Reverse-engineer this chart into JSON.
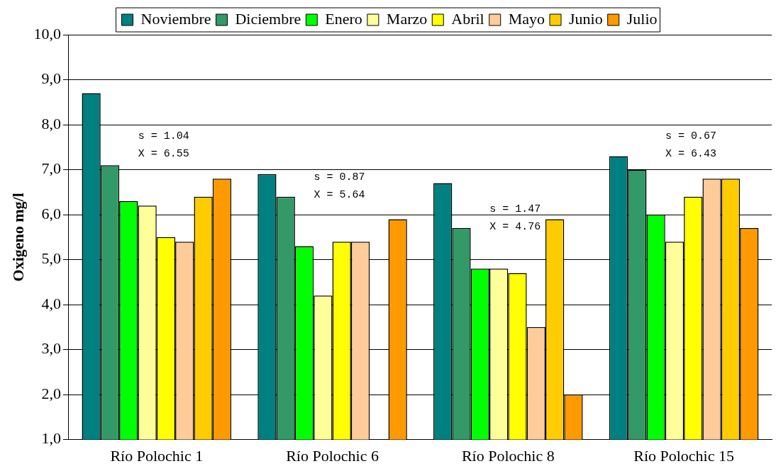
{
  "chart_data": {
    "type": "bar",
    "ylabel": "Oxigeno mg/l",
    "categories": [
      "Río Polochic 1",
      "Río Polochic 6",
      "Río Polochic 8",
      "Río Polochic 15"
    ],
    "series": [
      {
        "name": "Noviembre",
        "color": "#008080",
        "values": [
          8.7,
          6.9,
          6.7,
          7.3
        ]
      },
      {
        "name": "Diciembre",
        "color": "#339966",
        "values": [
          7.1,
          6.4,
          5.7,
          7.0
        ]
      },
      {
        "name": "Enero",
        "color": "#00ff00",
        "values": [
          6.3,
          5.3,
          4.8,
          6.0
        ]
      },
      {
        "name": "Marzo",
        "color": "#ffff99",
        "values": [
          6.2,
          4.2,
          4.8,
          5.4
        ]
      },
      {
        "name": "Abril",
        "color": "#ffff00",
        "values": [
          5.5,
          5.4,
          4.7,
          6.4
        ]
      },
      {
        "name": "Mayo",
        "color": "#ffcc99",
        "values": [
          5.4,
          5.4,
          3.5,
          6.8
        ]
      },
      {
        "name": "Junio",
        "color": "#ffcc00",
        "values": [
          6.4,
          null,
          5.9,
          6.8
        ]
      },
      {
        "name": "Julio",
        "color": "#ff9900",
        "values": [
          6.8,
          5.9,
          2.0,
          5.7
        ]
      }
    ],
    "ylim": [
      1,
      10
    ],
    "yticks": [
      {
        "value": 1,
        "label": "1,0"
      },
      {
        "value": 2,
        "label": "2,0"
      },
      {
        "value": 3,
        "label": "3,0"
      },
      {
        "value": 4,
        "label": "4,0"
      },
      {
        "value": 5,
        "label": "5,0"
      },
      {
        "value": 6,
        "label": "6,0"
      },
      {
        "value": 7,
        "label": "7,0"
      },
      {
        "value": 8,
        "label": "8,0"
      },
      {
        "value": 9,
        "label": "9,0"
      },
      {
        "value": 10,
        "label": "10,0"
      }
    ],
    "grid": "y",
    "legend": "top",
    "annotations": [
      "s = 1.04",
      "X = 6.55",
      "s = 0.87",
      "X = 5.64",
      "s = 1.47",
      "X = 4.76",
      "s = 0.67",
      "X = 6.43"
    ]
  }
}
